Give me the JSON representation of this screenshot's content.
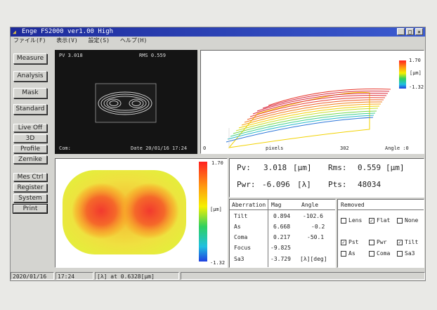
{
  "window": {
    "title": "Enge  FS2000 ver1.00  High",
    "menu": [
      "ファイル(F)",
      "表示(V)",
      "設定(S)",
      "ヘルプ(H)"
    ],
    "controls": {
      "min": "_",
      "max": "□",
      "close": "×"
    }
  },
  "left_buttons": {
    "group1": [
      "Measure",
      "Analysis",
      "Mask",
      "Standard"
    ],
    "group2": [
      "Live Off",
      "3D",
      "Profile",
      "Zernike"
    ],
    "group3": [
      "Mes Ctrl",
      "Register",
      "System",
      "Print"
    ]
  },
  "interferogram": {
    "pv": "PV  3.018",
    "rms": "RMS  0.559",
    "com": "Com:",
    "date": "Date 20/01/16 17:24"
  },
  "plot3d": {
    "scale_max": "1.70",
    "scale_unit": "[μm]",
    "scale_min": "-1.32",
    "x_start": "0",
    "x_label": "pixels",
    "x_end": "302",
    "angle": "Angle :0"
  },
  "map2d": {
    "scale_max": "1.70",
    "scale_unit": "[μm]",
    "scale_min": "-1.32"
  },
  "results": {
    "pv_label": "Pv:",
    "pv_value": "3.018",
    "pv_unit": "[μm]",
    "rms_label": "Rms:",
    "rms_value": "0.559",
    "rms_unit": "[μm]",
    "pwr_label": "Pwr:",
    "pwr_value": "-6.096",
    "pwr_unit": "[λ]",
    "pts_label": "Pts:",
    "pts_value": "48034"
  },
  "aberration": {
    "headers": [
      "Aberration",
      "Mag",
      "Angle"
    ],
    "rows": [
      {
        "name": "Tilt",
        "mag": "0.894",
        "angle": "-102.6"
      },
      {
        "name": "As",
        "mag": "6.668",
        "angle": "-0.2"
      },
      {
        "name": "Coma",
        "mag": "0.217",
        "angle": "-50.1"
      },
      {
        "name": "Focus",
        "mag": "-9.825",
        "angle": ""
      },
      {
        "name": "Sa3",
        "mag": "-3.729",
        "angle": "[λ][deg]"
      }
    ]
  },
  "removed": {
    "title": "Removed",
    "row1": [
      {
        "label": "Lens",
        "checked": false
      },
      {
        "label": "Flat",
        "checked": true
      },
      {
        "label": "None",
        "checked": false
      }
    ],
    "row2": [
      {
        "label": "Pst",
        "checked": true
      },
      {
        "label": "Pwr",
        "checked": false
      },
      {
        "label": "Tilt",
        "checked": true
      }
    ],
    "row3": [
      {
        "label": "As",
        "checked": false
      },
      {
        "label": "Coma",
        "checked": false
      },
      {
        "label": "Sa3",
        "checked": false
      }
    ]
  },
  "status": {
    "date": "2020/01/16",
    "time": "17:24",
    "wavelength": "[λ] at 0.6328[μm]"
  }
}
